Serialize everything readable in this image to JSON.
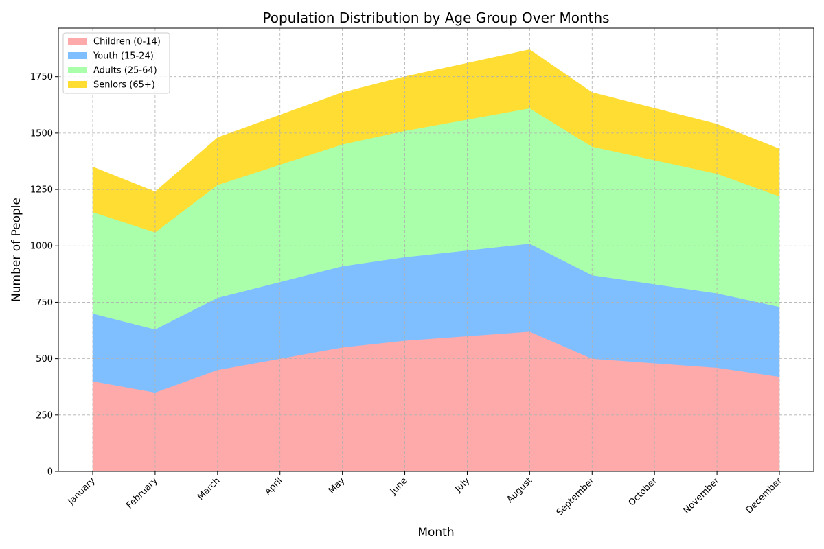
{
  "chart_data": {
    "type": "area",
    "stacked": true,
    "title": "Population Distribution by Age Group Over Months",
    "xlabel": "Month",
    "ylabel": "Number of People",
    "categories": [
      "January",
      "February",
      "March",
      "April",
      "May",
      "June",
      "July",
      "August",
      "September",
      "October",
      "November",
      "December"
    ],
    "ylim": [
      0,
      1965
    ],
    "yticks": [
      0,
      250,
      500,
      750,
      1000,
      1250,
      1500,
      1750
    ],
    "grid": true,
    "legend_position": "top-left",
    "series": [
      {
        "name": "Children (0-14)",
        "color": "#ffaaaa",
        "values": [
          400,
          350,
          450,
          500,
          550,
          580,
          600,
          620,
          500,
          480,
          460,
          420
        ]
      },
      {
        "name": "Youth (15-24)",
        "color": "#80bfff",
        "values": [
          300,
          280,
          320,
          340,
          360,
          370,
          380,
          390,
          370,
          350,
          330,
          310
        ]
      },
      {
        "name": "Adults (25-64)",
        "color": "#aaffaa",
        "values": [
          450,
          430,
          500,
          520,
          540,
          560,
          580,
          600,
          570,
          550,
          530,
          490
        ]
      },
      {
        "name": "Seniors (65+)",
        "color": "#ffdd33",
        "values": [
          200,
          180,
          210,
          220,
          230,
          240,
          250,
          260,
          240,
          230,
          220,
          210
        ]
      }
    ]
  }
}
